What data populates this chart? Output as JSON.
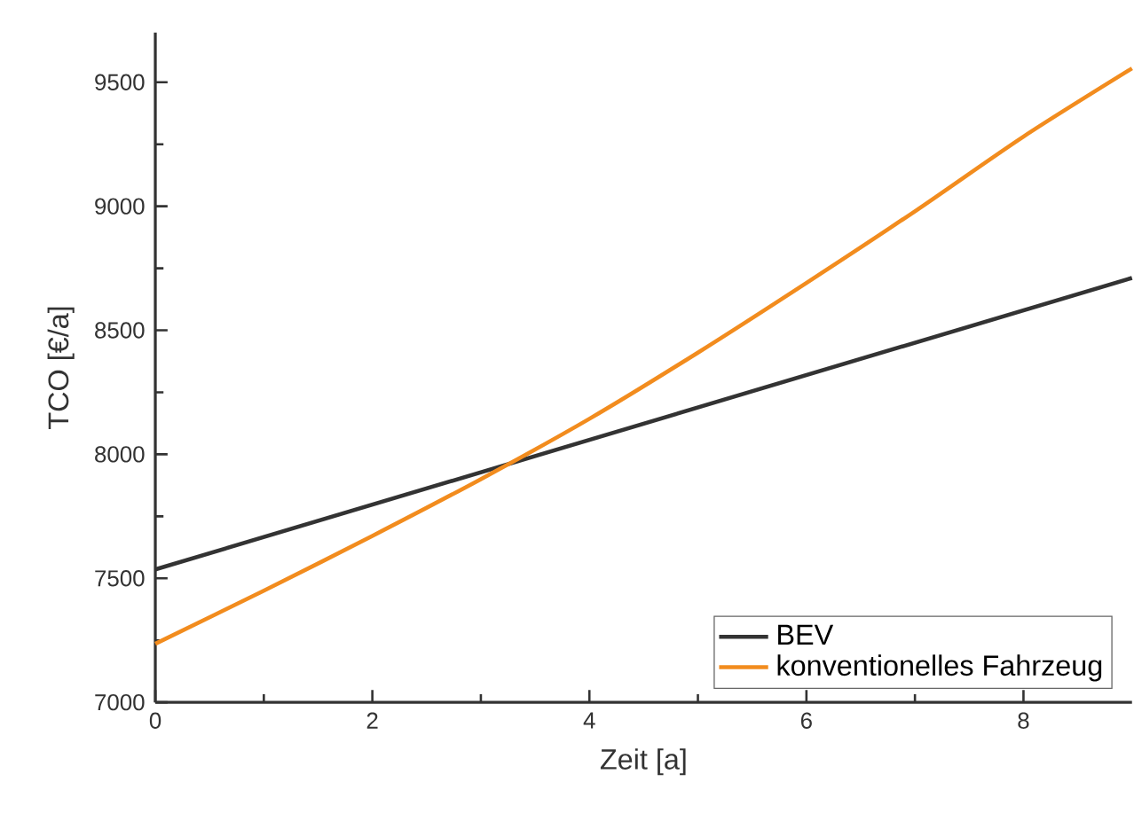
{
  "chart_data": {
    "type": "line",
    "xlabel": "Zeit [a]",
    "ylabel": "TCO [€/a]",
    "xlim": [
      0,
      9
    ],
    "ylim": [
      7000,
      9700
    ],
    "xticks": [
      0,
      2,
      4,
      6,
      8
    ],
    "yticks": [
      7000,
      7500,
      8000,
      8500,
      9000,
      9500
    ],
    "legend": "bottom right",
    "grid": false,
    "marker": "none",
    "series": [
      {
        "name": "BEV",
        "color": "#333333",
        "x": [
          0,
          9
        ],
        "values": [
          7536,
          8711
        ]
      },
      {
        "name": "konventionelles Fahrzeug",
        "color": "#f28c1e",
        "x": [
          0,
          1,
          2,
          3,
          4,
          5,
          6,
          7,
          8,
          9
        ],
        "values": [
          7236,
          7450,
          7671,
          7900,
          8143,
          8410,
          8691,
          8980,
          9281,
          9556
        ]
      }
    ]
  }
}
